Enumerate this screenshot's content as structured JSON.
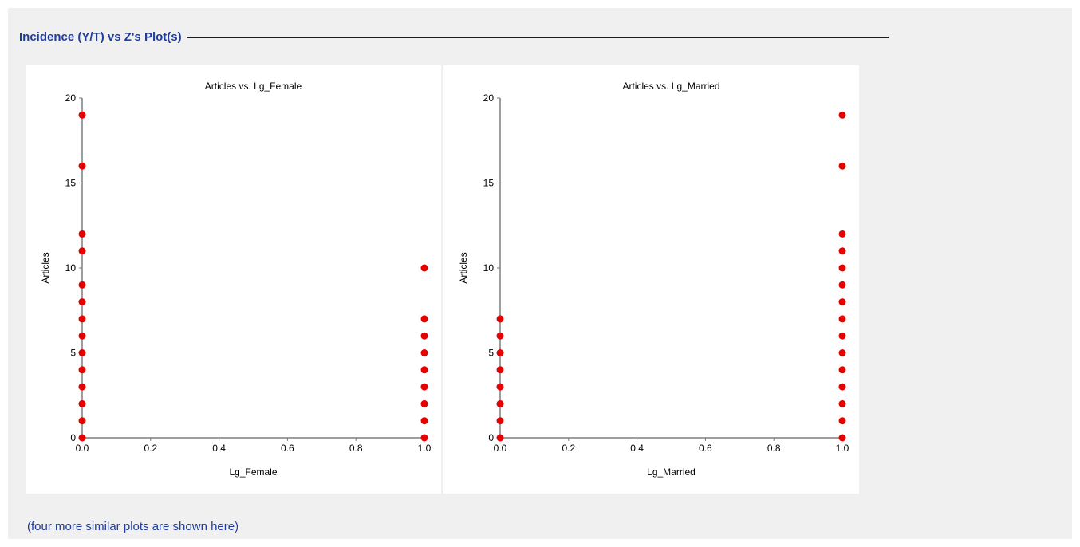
{
  "section": {
    "title": "Incidence (Y/T) vs Z's Plot(s)"
  },
  "note": "(four more similar plots are shown here)",
  "colors": {
    "header_text": "#1f3d99",
    "point_fill": "#e60000",
    "axis": "#7f7f7f",
    "panel_background": "#f0f0f0"
  },
  "chart_data": [
    {
      "type": "scatter",
      "title": "Articles vs. Lg_Female",
      "xlabel": "Lg_Female",
      "ylabel": "Articles",
      "xlim": [
        0,
        1
      ],
      "ylim": [
        0,
        20
      ],
      "x_ticks": [
        "0.0",
        "0.2",
        "0.4",
        "0.6",
        "0.8",
        "1.0"
      ],
      "y_ticks": [
        "0",
        "5",
        "10",
        "15",
        "20"
      ],
      "grid": false,
      "points": [
        {
          "x": 0,
          "y": 0
        },
        {
          "x": 0,
          "y": 1
        },
        {
          "x": 0,
          "y": 2
        },
        {
          "x": 0,
          "y": 3
        },
        {
          "x": 0,
          "y": 4
        },
        {
          "x": 0,
          "y": 5
        },
        {
          "x": 0,
          "y": 6
        },
        {
          "x": 0,
          "y": 7
        },
        {
          "x": 0,
          "y": 8
        },
        {
          "x": 0,
          "y": 9
        },
        {
          "x": 0,
          "y": 11
        },
        {
          "x": 0,
          "y": 12
        },
        {
          "x": 0,
          "y": 16
        },
        {
          "x": 0,
          "y": 19
        },
        {
          "x": 1,
          "y": 0
        },
        {
          "x": 1,
          "y": 1
        },
        {
          "x": 1,
          "y": 2
        },
        {
          "x": 1,
          "y": 3
        },
        {
          "x": 1,
          "y": 4
        },
        {
          "x": 1,
          "y": 5
        },
        {
          "x": 1,
          "y": 6
        },
        {
          "x": 1,
          "y": 7
        },
        {
          "x": 1,
          "y": 10
        }
      ]
    },
    {
      "type": "scatter",
      "title": "Articles vs. Lg_Married",
      "xlabel": "Lg_Married",
      "ylabel": "Articles",
      "xlim": [
        0,
        1
      ],
      "ylim": [
        0,
        20
      ],
      "x_ticks": [
        "0.0",
        "0.2",
        "0.4",
        "0.6",
        "0.8",
        "1.0"
      ],
      "y_ticks": [
        "0",
        "5",
        "10",
        "15",
        "20"
      ],
      "grid": false,
      "points": [
        {
          "x": 0,
          "y": 0
        },
        {
          "x": 0,
          "y": 1
        },
        {
          "x": 0,
          "y": 2
        },
        {
          "x": 0,
          "y": 3
        },
        {
          "x": 0,
          "y": 4
        },
        {
          "x": 0,
          "y": 5
        },
        {
          "x": 0,
          "y": 6
        },
        {
          "x": 0,
          "y": 7
        },
        {
          "x": 1,
          "y": 0
        },
        {
          "x": 1,
          "y": 1
        },
        {
          "x": 1,
          "y": 2
        },
        {
          "x": 1,
          "y": 3
        },
        {
          "x": 1,
          "y": 4
        },
        {
          "x": 1,
          "y": 5
        },
        {
          "x": 1,
          "y": 6
        },
        {
          "x": 1,
          "y": 7
        },
        {
          "x": 1,
          "y": 8
        },
        {
          "x": 1,
          "y": 9
        },
        {
          "x": 1,
          "y": 10
        },
        {
          "x": 1,
          "y": 11
        },
        {
          "x": 1,
          "y": 12
        },
        {
          "x": 1,
          "y": 16
        },
        {
          "x": 1,
          "y": 19
        }
      ]
    }
  ]
}
